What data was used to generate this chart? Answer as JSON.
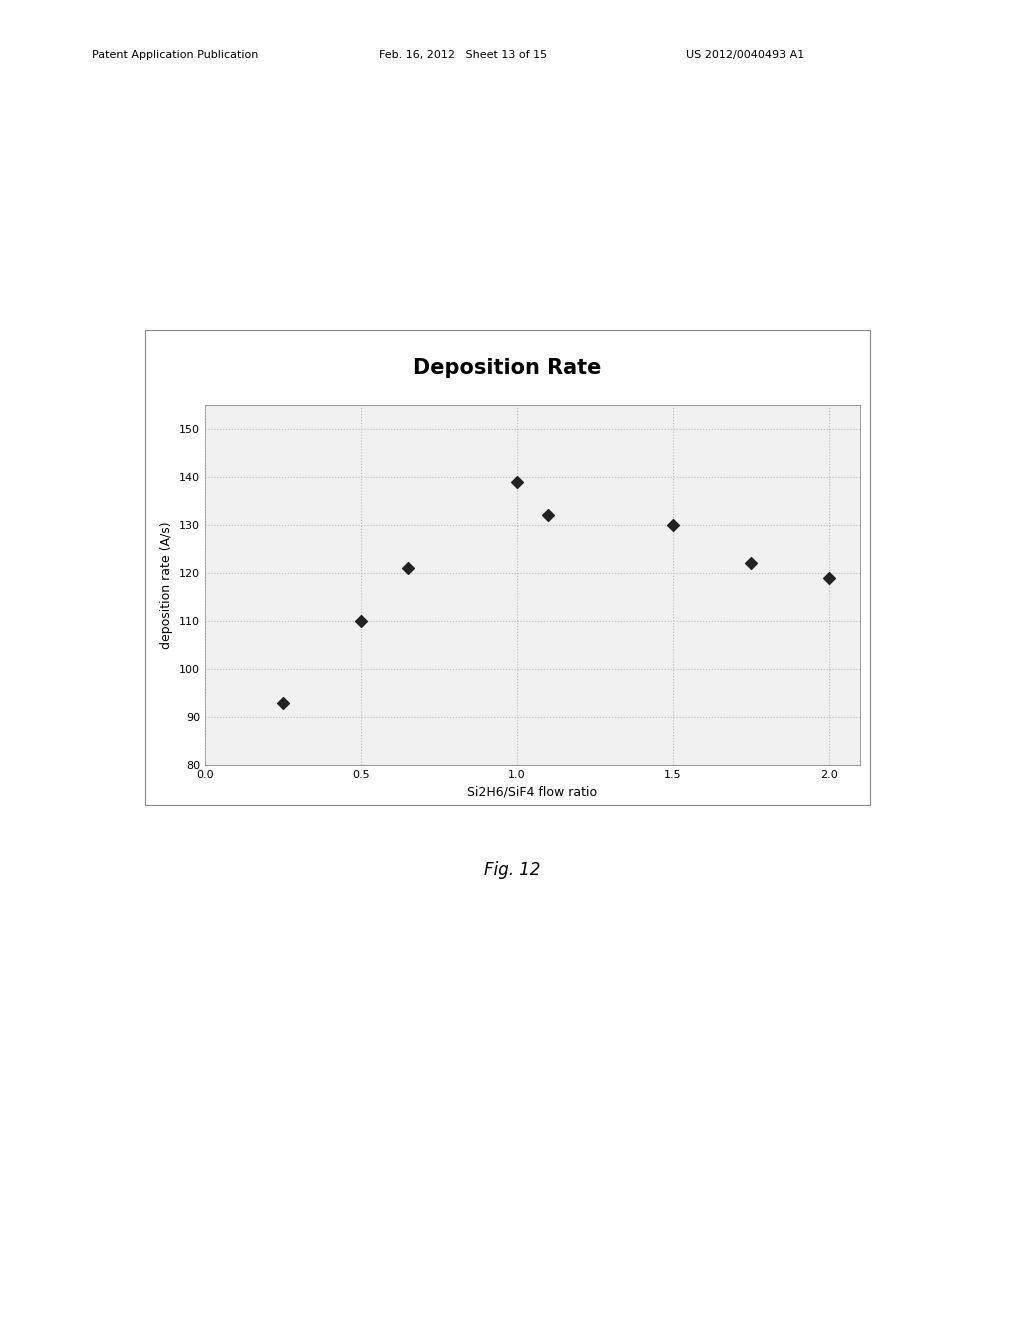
{
  "title": "Deposition Rate",
  "xlabel": "Si2H6/SiF4 flow ratio",
  "ylabel": "deposition rate (A/s)",
  "x_data": [
    0.25,
    0.5,
    0.65,
    1.0,
    1.1,
    1.5,
    1.75,
    2.0
  ],
  "y_data": [
    93,
    110,
    121,
    139,
    132,
    130,
    122,
    119
  ],
  "xlim": [
    0,
    2.1
  ],
  "ylim": [
    80,
    155
  ],
  "yticks": [
    80,
    90,
    100,
    110,
    120,
    130,
    140,
    150
  ],
  "xticks": [
    0,
    0.5,
    1,
    1.5,
    2
  ],
  "marker": "D",
  "marker_size": 6,
  "marker_color": "#222222",
  "grid_color": "#bbbbbb",
  "grid_style": "dotted",
  "background_color": "#f0f0f0",
  "title_fontsize": 15,
  "title_fontweight": "bold",
  "label_fontsize": 9,
  "tick_fontsize": 8,
  "fig_caption": "Fig. 12",
  "fig_caption_fontsize": 12,
  "header_left": "Patent Application Publication",
  "header_mid": "Feb. 16, 2012   Sheet 13 of 15",
  "header_right": "US 2012/0040493 A1",
  "header_fontsize": 8
}
